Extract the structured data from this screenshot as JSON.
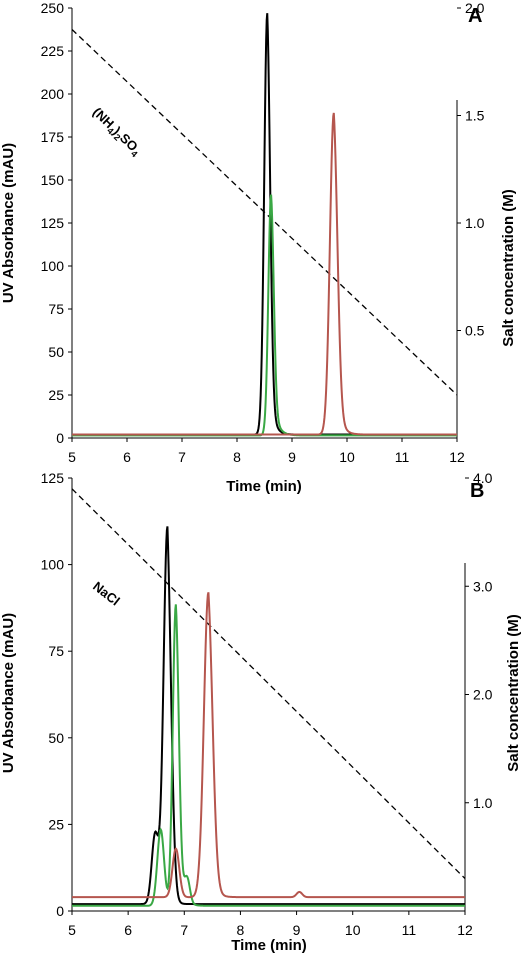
{
  "chart_data": [
    {
      "type": "line",
      "panel_label": "A",
      "xlabel": "Time (min)",
      "ylabel": "UV Absorbance (mAU)",
      "y2label": "Salt concentration (M)",
      "xlim": [
        5,
        12
      ],
      "ylim": [
        0,
        250
      ],
      "y2lim": [
        0,
        2.0
      ],
      "xticks": [
        "5",
        "6",
        "7",
        "8",
        "9",
        "10",
        "11",
        "12"
      ],
      "yticks": [
        "0",
        "25",
        "50",
        "75",
        "100",
        "125",
        "150",
        "175",
        "200",
        "225",
        "250"
      ],
      "y2ticks": [
        "0.5",
        "1.0",
        "1.5",
        "2.0"
      ],
      "salt_label": "(NH4)2SO4",
      "series": [
        {
          "color": "#000000",
          "peak_x": 8.55,
          "peak_y": 245,
          "width": 0.055,
          "tail": 14,
          "base": 2
        },
        {
          "color": "#3aa845",
          "peak_x": 8.62,
          "peak_y": 140,
          "width": 0.05,
          "tail": 12,
          "base": 1.5
        },
        {
          "color": "#b5564e",
          "peak_x": 9.76,
          "peak_y": 187,
          "width": 0.07,
          "tail": 12,
          "base": 2
        }
      ],
      "salt_line": {
        "x": [
          5,
          12
        ],
        "y": [
          1.9,
          0.2
        ],
        "color": "#000000"
      }
    },
    {
      "type": "line",
      "panel_label": "B",
      "xlabel": "Time (min)",
      "ylabel": "UV Absorbance (mAU)",
      "y2label": "Salt concentration (M)",
      "xlim": [
        5,
        12
      ],
      "ylim": [
        0,
        125
      ],
      "y2lim": [
        0,
        4.0
      ],
      "xticks": [
        "5",
        "6",
        "7",
        "8",
        "9",
        "10",
        "11",
        "12"
      ],
      "yticks": [
        "0",
        "25",
        "50",
        "75",
        "100",
        "125"
      ],
      "y2ticks": [
        "1.0",
        "2.0",
        "3.0",
        "4.0"
      ],
      "salt_label": "NaCl",
      "series": [
        {
          "color": "#000000",
          "peak_x": 6.7,
          "peak_y": 109,
          "width": 0.07,
          "tail": 20,
          "base": 2,
          "shoulder_x": 6.48,
          "shoulder_y": 20
        },
        {
          "color": "#3aa845",
          "peak_x": 6.85,
          "peak_y": 87,
          "width": 0.055,
          "tail": 13,
          "base": 1.5,
          "shoulder_x": 6.58,
          "shoulder_y": 22,
          "shoulder2_x": 7.05,
          "shoulder2_y": 7
        },
        {
          "color": "#b5564e",
          "peak_x": 7.43,
          "peak_y": 88,
          "width": 0.08,
          "tail": 14,
          "base": 4,
          "shoulder_x": 6.85,
          "shoulder_y": 14,
          "shoulder2_x": 9.05,
          "shoulder2_y": 1.5
        }
      ],
      "salt_line": {
        "x": [
          5,
          12
        ],
        "y": [
          3.9,
          0.3
        ],
        "color": "#000000"
      }
    }
  ]
}
